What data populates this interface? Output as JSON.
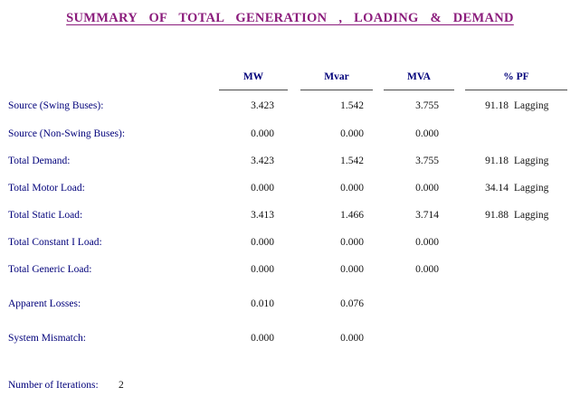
{
  "title": "SUMMARY  OF  TOTAL  GENERATION ,  LOADING  &  DEMAND",
  "columns": [
    "MW",
    "Mvar",
    "MVA",
    "% PF"
  ],
  "rows": [
    {
      "label": "Source (Swing Buses):",
      "mw": "3.423",
      "mvar": "1.542",
      "mva": "3.755",
      "pf": "91.18",
      "pf_type": "Lagging"
    },
    {
      "label": "Source (Non-Swing Buses):",
      "mw": "0.000",
      "mvar": "0.000",
      "mva": "0.000",
      "pf": "",
      "pf_type": ""
    },
    {
      "label": "Total Demand:",
      "mw": "3.423",
      "mvar": "1.542",
      "mva": "3.755",
      "pf": "91.18",
      "pf_type": "Lagging"
    },
    {
      "label": "Total Motor Load:",
      "mw": "0.000",
      "mvar": "0.000",
      "mva": "0.000",
      "pf": "34.14",
      "pf_type": "Lagging"
    },
    {
      "label": "Total Static Load:",
      "mw": "3.413",
      "mvar": "1.466",
      "mva": "3.714",
      "pf": "91.88",
      "pf_type": "Lagging"
    },
    {
      "label": "Total Constant I Load:",
      "mw": "0.000",
      "mvar": "0.000",
      "mva": "0.000",
      "pf": "",
      "pf_type": ""
    },
    {
      "label": "Total Generic Load:",
      "mw": "0.000",
      "mvar": "0.000",
      "mva": "0.000",
      "pf": "",
      "pf_type": ""
    },
    {
      "label": "Apparent Losses:",
      "mw": "0.010",
      "mvar": "0.076",
      "mva": "",
      "pf": "",
      "pf_type": ""
    },
    {
      "label": "System Mismatch:",
      "mw": "0.000",
      "mvar": "0.000",
      "mva": "",
      "pf": "",
      "pf_type": ""
    }
  ],
  "iterations": {
    "label": "Number of Iterations:",
    "value": "2"
  }
}
